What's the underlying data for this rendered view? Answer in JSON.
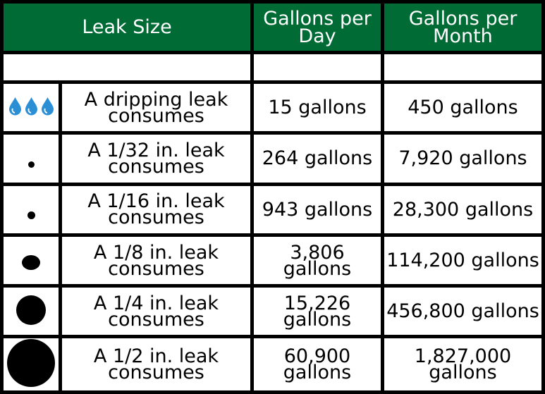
{
  "header": {
    "leak_size": "Leak Size",
    "per_day": "Gallons per Day",
    "per_month": "Gallons per Month"
  },
  "rows": [
    {
      "icon": "water-drops-icon",
      "label": "A dripping leak consumes",
      "per_day": "15 gallons",
      "per_month": "450 gallons"
    },
    {
      "icon": "leak-dot-1-32-icon",
      "label": "A 1/32 in. leak consumes",
      "per_day": "264 gallons",
      "per_month": "7,920 gallons"
    },
    {
      "icon": "leak-dot-1-16-icon",
      "label": "A 1/16 in. leak consumes",
      "per_day": "943 gallons",
      "per_month": "28,300 gallons"
    },
    {
      "icon": "leak-dot-1-8-icon",
      "label": "A 1/8 in. leak consumes",
      "per_day": "3,806 gallons",
      "per_month": "114,200 gallons"
    },
    {
      "icon": "leak-dot-1-4-icon",
      "label": "A 1/4 in. leak consumes",
      "per_day": "15,226 gallons",
      "per_month": "456,800 gallons"
    },
    {
      "icon": "leak-dot-1-2-icon",
      "label": "A 1/2 in. leak consumes",
      "per_day": "60,900 gallons",
      "per_month": "1,827,000 gallons"
    }
  ],
  "colors": {
    "header_bg": "#006b35",
    "header_text": "#ffffff",
    "drop_blue": "#2b8fd6"
  }
}
